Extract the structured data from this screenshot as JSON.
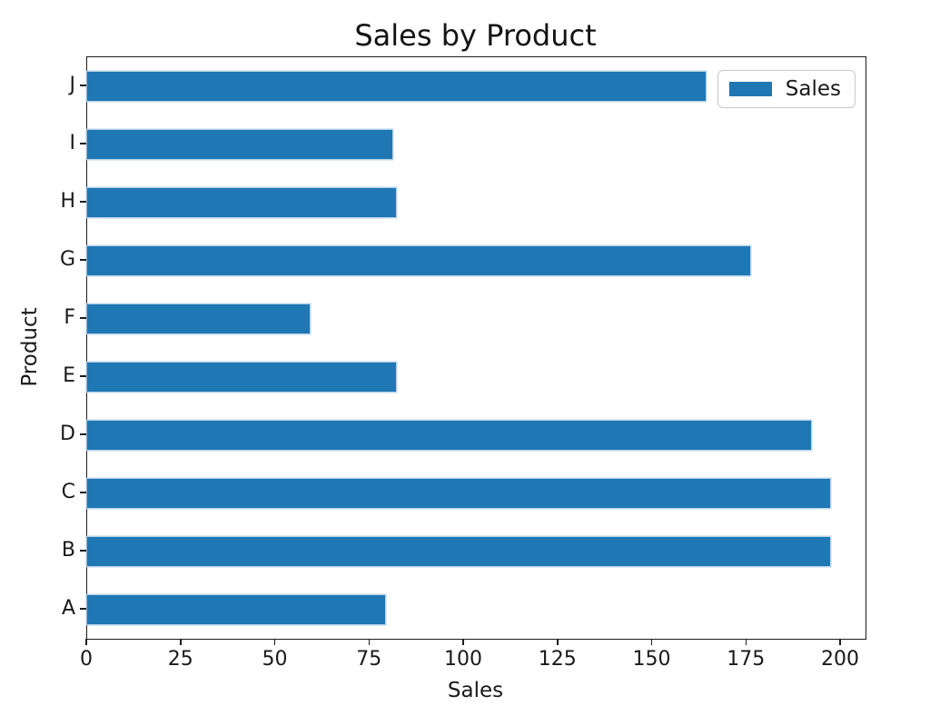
{
  "chart_data": {
    "type": "bar",
    "orientation": "horizontal",
    "title": "Sales by Product",
    "xlabel": "Sales",
    "ylabel": "Product",
    "categories": [
      "A",
      "B",
      "C",
      "D",
      "E",
      "F",
      "G",
      "H",
      "I",
      "J"
    ],
    "series": [
      {
        "name": "Sales",
        "values": [
          79,
          197,
          197,
          192,
          82,
          59,
          176,
          82,
          81,
          164
        ]
      }
    ],
    "category_order": "A at bottom, J at top",
    "xlim": [
      0,
      200
    ],
    "xticks": [
      0,
      25,
      50,
      75,
      100,
      125,
      150,
      175,
      200
    ],
    "grid": false,
    "legend": {
      "label": "Sales",
      "position": "upper right"
    },
    "bar_color": "#1f77b4",
    "background_color": "#ffffff"
  }
}
